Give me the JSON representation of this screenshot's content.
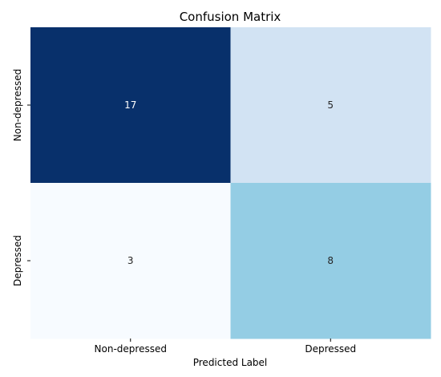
{
  "chart_data": {
    "type": "heatmap",
    "title": "Confusion Matrix",
    "xlabel": "Predicted Label",
    "ylabel": "",
    "x_categories": [
      "Non-depressed",
      "Depressed"
    ],
    "y_categories": [
      "Non-depressed",
      "Depressed"
    ],
    "values": [
      [
        17,
        5
      ],
      [
        3,
        8
      ]
    ],
    "colormap": "Blues",
    "cell_colors": [
      [
        "#08306b",
        "#d2e3f3"
      ],
      [
        "#f7fbff",
        "#94cde4"
      ]
    ],
    "label_colors": [
      [
        "#ffffff",
        "#262626"
      ],
      [
        "#262626",
        "#262626"
      ]
    ],
    "colorbar": false,
    "grid": false
  }
}
